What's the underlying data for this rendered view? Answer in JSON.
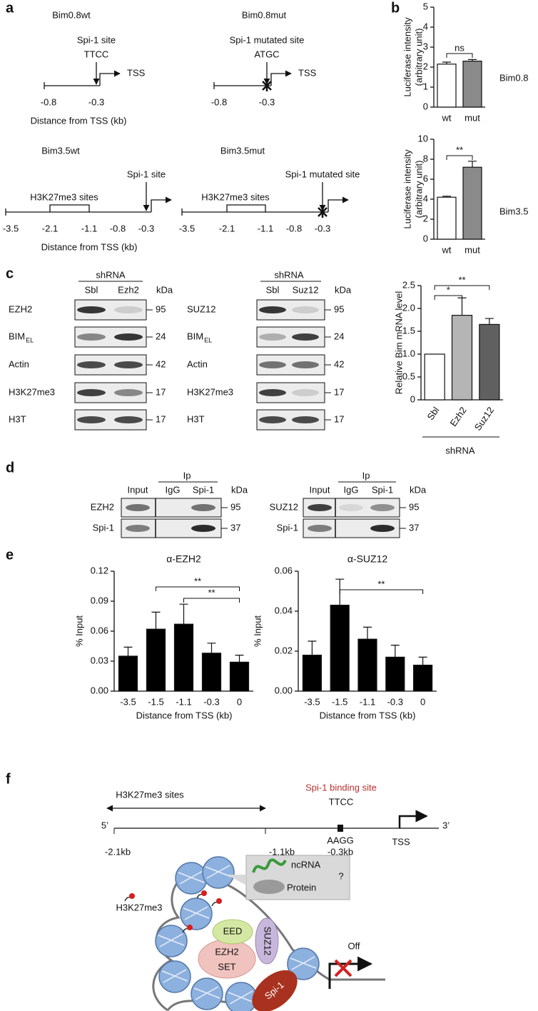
{
  "panel_labels": [
    "a",
    "b",
    "c",
    "d",
    "e",
    "f"
  ],
  "panel_a": {
    "bim08wt": {
      "title": "Bim0.8wt",
      "site": "Spi-1 site",
      "sequence": "TTCC",
      "tss": "TSS",
      "ticks": [
        "-0.8",
        "-0.3"
      ],
      "axis_label": "Distance from TSS (kb)"
    },
    "bim08mut": {
      "title": "Bim0.8mut",
      "site": "Spi-1 mutated site",
      "sequence": "ATGC",
      "tss": "TSS",
      "ticks": [
        "-0.8",
        "-0.3"
      ]
    },
    "bim35wt": {
      "title": "Bim3.5wt",
      "site": "Spi-1 site",
      "region": "H3K27me3 sites",
      "ticks": [
        "-3.5",
        "-2.1",
        "-1.1",
        "-0.8",
        "-0.3"
      ],
      "axis_label": "Distance from TSS (kb)"
    },
    "bim35mut": {
      "title": "Bim3.5mut",
      "site": "Spi-1 mutated site",
      "region": "H3K27me3 sites",
      "ticks": [
        "-3.5",
        "-2.1",
        "-1.1",
        "-0.8",
        "-0.3"
      ]
    }
  },
  "panel_c_blots": [
    {
      "header": "shRNA",
      "lanes": [
        "Sbl",
        "Ezh2"
      ],
      "unit": "kDa",
      "rows": [
        {
          "label": "EZH2",
          "kda": 95
        },
        {
          "label": "BIM",
          "subscript": "EL",
          "kda": 24
        },
        {
          "label": "Actin",
          "kda": 42
        },
        {
          "label": "H3K27me3",
          "kda": 17
        },
        {
          "label": "H3T",
          "kda": 17
        }
      ]
    },
    {
      "header": "shRNA",
      "lanes": [
        "Sbl",
        "Suz12"
      ],
      "unit": "kDa",
      "rows": [
        {
          "label": "SUZ12",
          "kda": 95
        },
        {
          "label": "BIM",
          "subscript": "EL",
          "kda": 24
        },
        {
          "label": "Actin",
          "kda": 42
        },
        {
          "label": "H3K27me3",
          "kda": 17
        },
        {
          "label": "H3T",
          "kda": 17
        }
      ]
    }
  ],
  "panel_d_blots": [
    {
      "header": "Ip",
      "lanes": [
        "Input",
        "IgG",
        "Spi-1"
      ],
      "unit": "kDa",
      "rows": [
        {
          "label": "EZH2",
          "kda": 95
        },
        {
          "label": "Spi-1",
          "kda": 37
        }
      ]
    },
    {
      "header": "Ip",
      "lanes": [
        "Input",
        "IgG",
        "Spi-1"
      ],
      "unit": "kDa",
      "rows": [
        {
          "label": "SUZ12",
          "kda": 95
        },
        {
          "label": "Spi-1",
          "kda": 37
        }
      ]
    }
  ],
  "panel_f": {
    "region": "H3K27me3 sites",
    "site": "Spi-1 binding site",
    "sequence": "TTCC",
    "strand_5": "5’",
    "strand_3": "3’",
    "complement": "AAGG",
    "site_position": "-0.3kb",
    "tss": "TSS",
    "region_start": "-2.1kb",
    "region_end": "-1.1kb"
  },
  "model": {
    "mark": "H3K27me3",
    "ncrna": "ncRNA",
    "protein": "Protein",
    "unknown": "?",
    "eed": "EED",
    "suz12": "SUZ12",
    "ezh2": "EZH2",
    "set": "SET",
    "spi1": "Spi-1",
    "state": "Off"
  },
  "chart_data": [
    {
      "type": "bar",
      "ylabel": [
        "Luciferase intensity",
        "(arbitrary unit)"
      ],
      "side_label": "Bim0.8",
      "categories": [
        "wt",
        "mut"
      ],
      "values": [
        2.15,
        2.3
      ],
      "errors": [
        0.1,
        0.08
      ],
      "colors": [
        "#ffffff",
        "#8a8a8a"
      ],
      "ylim": [
        0,
        5
      ],
      "yticks": [
        0,
        1,
        2,
        3,
        4,
        5
      ],
      "annotations": [
        "ns"
      ]
    },
    {
      "type": "bar",
      "ylabel": [
        "Luciferase intensity",
        "(arbitrary unit)"
      ],
      "side_label": "Bim3.5",
      "categories": [
        "wt",
        "mut"
      ],
      "values": [
        4.2,
        7.2
      ],
      "errors": [
        0.1,
        0.6
      ],
      "colors": [
        "#ffffff",
        "#8a8a8a"
      ],
      "ylim": [
        0,
        10
      ],
      "yticks": [
        0,
        2,
        4,
        6,
        8,
        10
      ],
      "annotations": [
        "**"
      ]
    },
    {
      "type": "bar",
      "ylabel": "Relative Bim mRNA level",
      "xlabel": "shRNA",
      "categories": [
        "Sbl",
        "Ezh2",
        "Suz12"
      ],
      "values": [
        1,
        1.85,
        1.65
      ],
      "errors": [
        null,
        0.38,
        0.13
      ],
      "colors": [
        "#ffffff",
        "#b5b5b5",
        "#606060"
      ],
      "ylim": [
        0,
        2.5
      ],
      "yticks": [
        0,
        0.5,
        {
          "value": 1,
          "label": "1.0"
        },
        1.5,
        {
          "value": 2,
          "label": "2.0"
        },
        2.5
      ],
      "annotations": [
        "*",
        "**"
      ]
    },
    {
      "type": "bar",
      "title": "α-EZH2",
      "ylabel": "% Input",
      "xlabel": "Distance from TSS (kb)",
      "categories": [
        "-3.5",
        "-1.5",
        "-1.1",
        "-0.3",
        "0"
      ],
      "values": [
        0.035,
        0.062,
        0.067,
        0.038,
        0.029
      ],
      "errors": [
        0.009,
        0.017,
        0.02,
        0.01,
        0.007
      ],
      "color": "#000000",
      "ylim": [
        0,
        0.12
      ],
      "yticks": [
        {
          "value": 0,
          "label": "0.00"
        },
        0.03,
        0.06,
        0.09,
        0.12
      ],
      "annotations": [
        "**",
        "**"
      ]
    },
    {
      "type": "bar",
      "title": "α-SUZ12",
      "ylabel": "% Input",
      "xlabel": "Distance from TSS (kb)",
      "categories": [
        "-3.5",
        "-1.5",
        "-1.1",
        "-0.3",
        "0"
      ],
      "values": [
        0.018,
        0.043,
        0.026,
        0.017,
        0.013
      ],
      "errors": [
        0.007,
        0.013,
        0.006,
        0.006,
        0.004
      ],
      "color": "#000000",
      "ylim": [
        0,
        0.06
      ],
      "yticks": [
        {
          "value": 0,
          "label": "0.00"
        },
        0.02,
        0.04,
        0.06
      ],
      "annotations": [
        "**"
      ]
    }
  ]
}
